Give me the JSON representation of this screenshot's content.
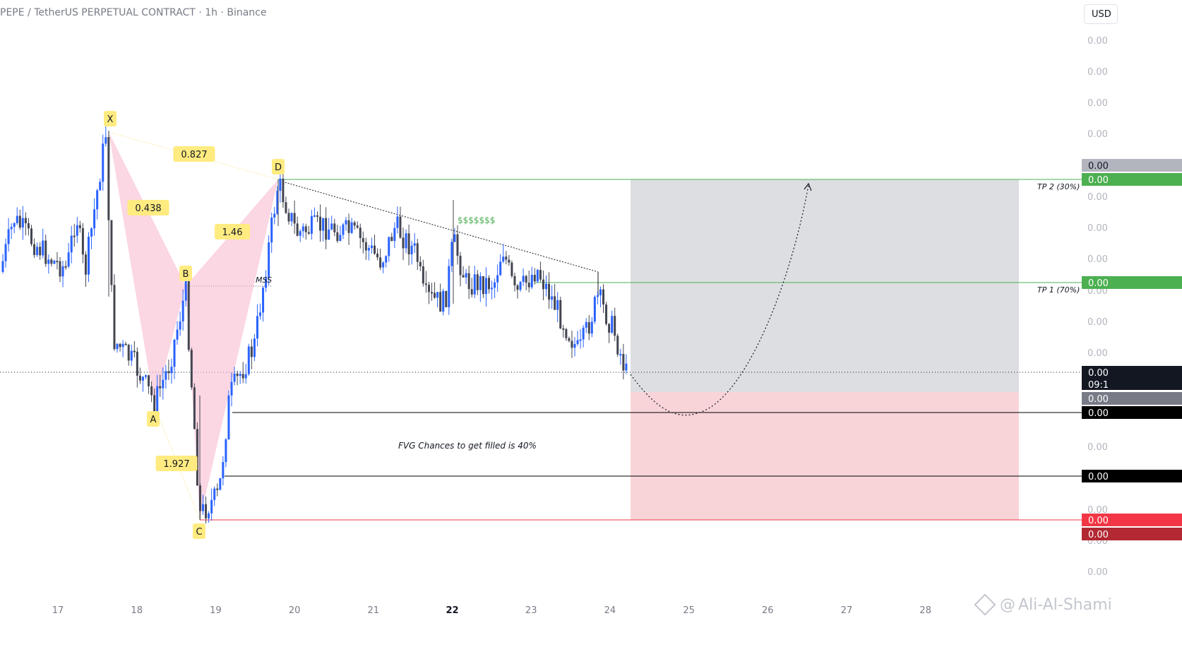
{
  "header": {
    "title": "PEPE / TetherUS PERPETUAL CONTRACT · 1h · Binance",
    "unit": "USD"
  },
  "watermark": {
    "author": "Ali-Al-Shami"
  },
  "chart_data": {
    "type": "candlestick",
    "x_ticks": [
      {
        "label": "17",
        "x": 17.0,
        "bold": false
      },
      {
        "label": "18",
        "x": 18.0,
        "bold": false
      },
      {
        "label": "19",
        "x": 19.0,
        "bold": false
      },
      {
        "label": "20",
        "x": 20.0,
        "bold": false
      },
      {
        "label": "21",
        "x": 21.0,
        "bold": false
      },
      {
        "label": "22",
        "x": 22.0,
        "bold": true
      },
      {
        "label": "23",
        "x": 23.0,
        "bold": false
      },
      {
        "label": "24",
        "x": 24.0,
        "bold": false
      },
      {
        "label": "25",
        "x": 25.0,
        "bold": false
      },
      {
        "label": "26",
        "x": 26.0,
        "bold": false
      },
      {
        "label": "27",
        "x": 27.0,
        "bold": false
      },
      {
        "label": "28",
        "x": 28.0,
        "bold": false
      }
    ],
    "y_axis_labels": [
      "0.00",
      "0.00",
      "0.00",
      "0.00",
      "0.00",
      "0.00",
      "0.00",
      "0.00",
      "0.00",
      "0.00",
      "0.00",
      "0.00",
      "0.00",
      "0.00",
      "0.00",
      "0.00",
      "0.00"
    ],
    "price_tags": [
      {
        "text": "0.00",
        "bg": "#b2b5be",
        "fg": "#131722"
      },
      {
        "text": "0.00",
        "bg": "#4caf50",
        "fg": "#ffffff"
      },
      {
        "text": "0.00",
        "bg": "#4caf50",
        "fg": "#ffffff"
      },
      {
        "text": "0.00",
        "bg": "#131722",
        "fg": "#ffffff",
        "sub": "09:1"
      },
      {
        "text": "0.00",
        "bg": "#787b86",
        "fg": "#ffffff"
      },
      {
        "text": "0.00",
        "bg": "#000000",
        "fg": "#ffffff"
      },
      {
        "text": "0.00",
        "bg": "#000000",
        "fg": "#ffffff"
      },
      {
        "text": "0.00",
        "bg": "#f23645",
        "fg": "#ffffff"
      },
      {
        "text": "0.00",
        "bg": "#b22833",
        "fg": "#ffffff"
      }
    ],
    "pattern_points": [
      {
        "label": "X"
      },
      {
        "label": "A"
      },
      {
        "label": "B"
      },
      {
        "label": "C"
      },
      {
        "label": "D"
      }
    ],
    "ratios": [
      "0.827",
      "0.438",
      "1.46",
      "1.927"
    ],
    "annotations": {
      "mss": "MSS",
      "liquidity": "$$$$$$$",
      "fvg": "FVG Chances to get filled is 40%",
      "tp2": "TP 2 (30%)",
      "tp1": "TP 1 (70%)"
    },
    "colors": {
      "up": "#2962ff",
      "down": "#434651",
      "pattern_fill": "#f8bbd0",
      "target_zone": "#b2b5be",
      "stop_zone": "#f5c2c7",
      "tp_line": "#4caf50",
      "stop_line": "#f23645"
    }
  }
}
